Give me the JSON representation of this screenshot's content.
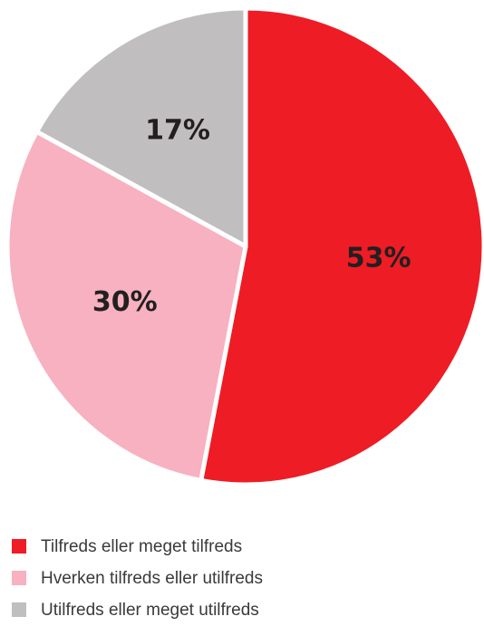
{
  "chart_data": {
    "type": "pie",
    "categories": [
      "Tilfreds eller meget tilfreds",
      "Hverken tilfreds eller utilfreds",
      "Utilfreds eller meget utilfreds"
    ],
    "values": [
      53,
      30,
      17
    ],
    "value_labels": [
      "53%",
      "30%",
      "17%"
    ],
    "colors": [
      "#ee1c25",
      "#f7b1c0",
      "#c0bebe"
    ],
    "legend": "bottom"
  }
}
